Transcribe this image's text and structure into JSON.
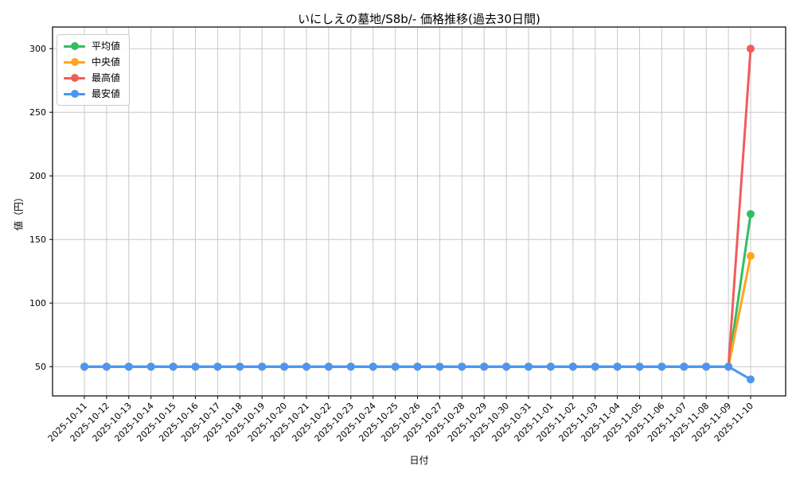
{
  "chart_data": {
    "type": "line",
    "title": "いにしえの墓地/S8b/- 価格推移(過去30日間)",
    "xlabel": "日付",
    "ylabel": "値（円）",
    "x": [
      "2025-10-11",
      "2025-10-12",
      "2025-10-13",
      "2025-10-14",
      "2025-10-15",
      "2025-10-16",
      "2025-10-17",
      "2025-10-18",
      "2025-10-19",
      "2025-10-20",
      "2025-10-21",
      "2025-10-22",
      "2025-10-23",
      "2025-10-24",
      "2025-10-25",
      "2025-10-26",
      "2025-10-27",
      "2025-10-28",
      "2025-10-29",
      "2025-10-30",
      "2025-10-31",
      "2025-11-01",
      "2025-11-02",
      "2025-11-03",
      "2025-11-04",
      "2025-11-05",
      "2025-11-06",
      "2025-11-07",
      "2025-11-08",
      "2025-11-09",
      "2025-11-10"
    ],
    "series": [
      {
        "key": "average",
        "name": "平均値",
        "color": "#33bd63",
        "values": [
          50,
          50,
          50,
          50,
          50,
          50,
          50,
          50,
          50,
          50,
          50,
          50,
          50,
          50,
          50,
          50,
          50,
          50,
          50,
          50,
          50,
          50,
          50,
          50,
          50,
          50,
          50,
          50,
          50,
          50,
          170
        ]
      },
      {
        "key": "median",
        "name": "中央値",
        "color": "#ffa51f",
        "values": [
          50,
          50,
          50,
          50,
          50,
          50,
          50,
          50,
          50,
          50,
          50,
          50,
          50,
          50,
          50,
          50,
          50,
          50,
          50,
          50,
          50,
          50,
          50,
          50,
          50,
          50,
          50,
          50,
          50,
          50,
          137
        ]
      },
      {
        "key": "max",
        "name": "最高値",
        "color": "#f25c5c",
        "values": [
          50,
          50,
          50,
          50,
          50,
          50,
          50,
          50,
          50,
          50,
          50,
          50,
          50,
          50,
          50,
          50,
          50,
          50,
          50,
          50,
          50,
          50,
          50,
          50,
          50,
          50,
          50,
          50,
          50,
          50,
          300
        ]
      },
      {
        "key": "min",
        "name": "最安値",
        "color": "#4c96f0",
        "values": [
          50,
          50,
          50,
          50,
          50,
          50,
          50,
          50,
          50,
          50,
          50,
          50,
          50,
          50,
          50,
          50,
          50,
          50,
          50,
          50,
          50,
          50,
          50,
          50,
          50,
          50,
          50,
          50,
          50,
          50,
          40
        ]
      }
    ],
    "yticks": [
      50,
      100,
      150,
      200,
      250,
      300
    ],
    "ylim": [
      27,
      317
    ],
    "grid": true,
    "legend_position": "upper left",
    "grid_color": "#c8c8c8",
    "axis_color": "#000000",
    "background_color": "#ffffff",
    "x_tick_rotation_deg": 45
  }
}
